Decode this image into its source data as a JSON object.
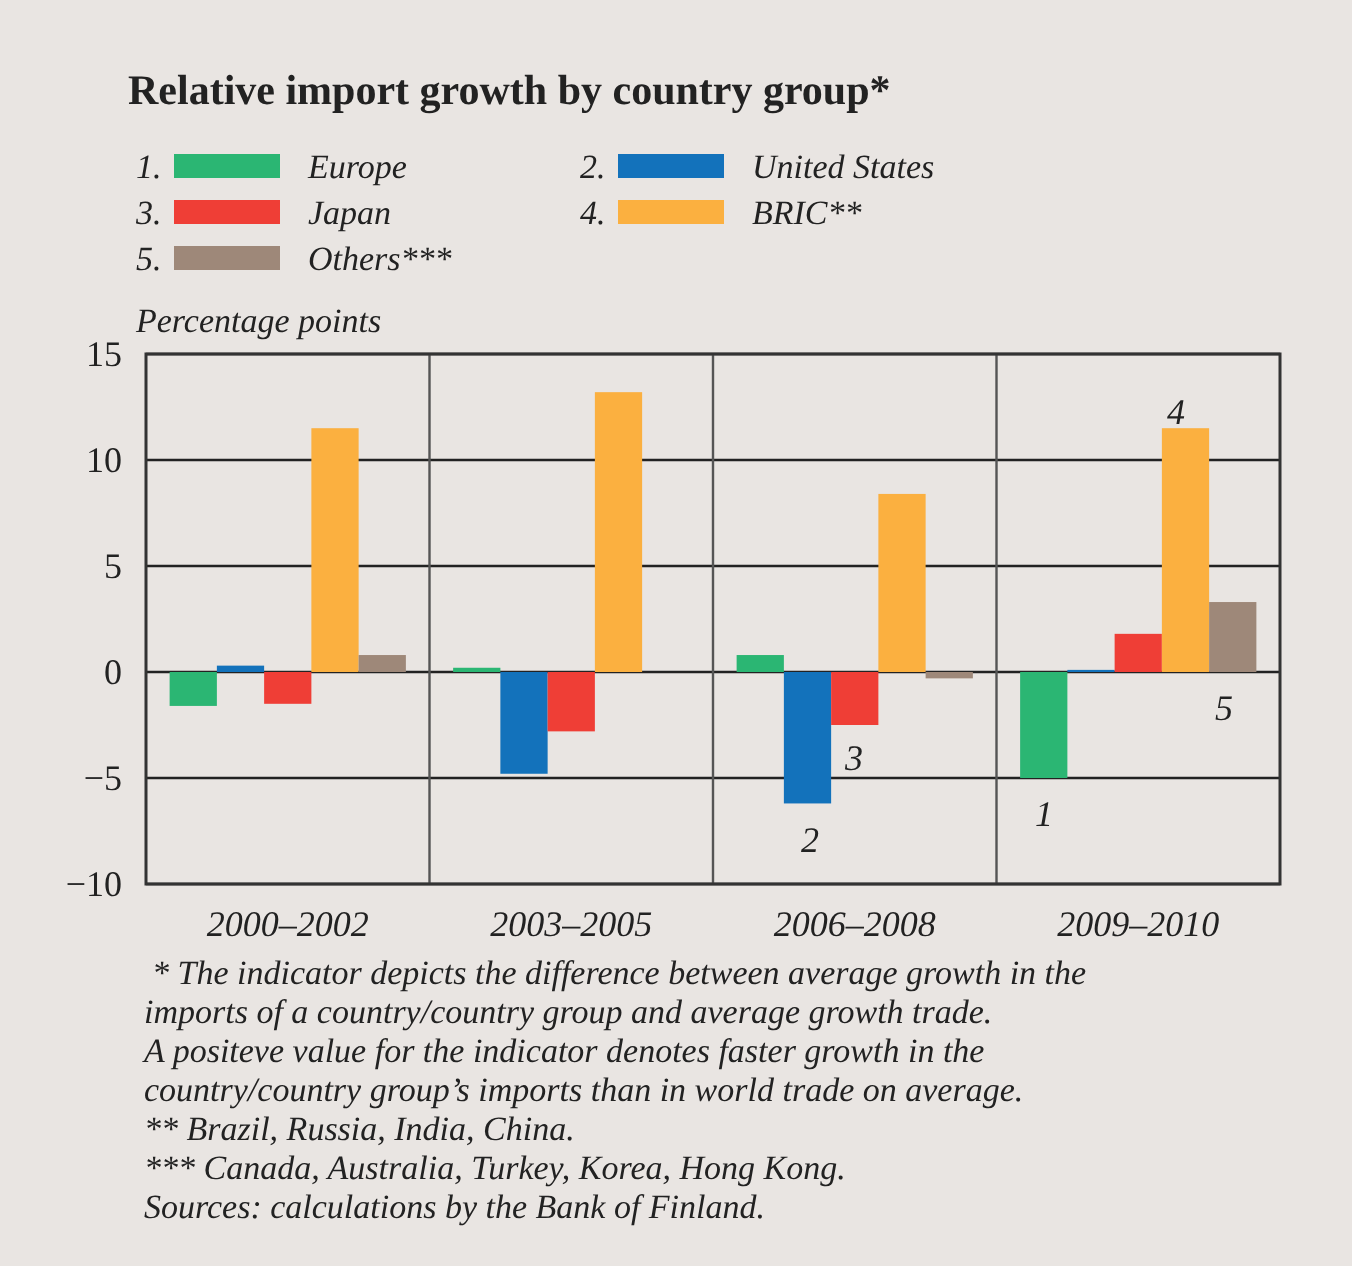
{
  "chart_data": {
    "type": "bar",
    "title": "Relative import growth by country group*",
    "ylabel": "Percentage points",
    "categories": [
      "2000–2002",
      "2003–2005",
      "2006–2008",
      "2009–2010"
    ],
    "series": [
      {
        "name": "Europe",
        "color": "#2bb673",
        "values": [
          -1.6,
          0.2,
          0.8,
          -5.0
        ]
      },
      {
        "name": "United States",
        "color": "#1372bb",
        "values": [
          0.3,
          -4.8,
          -6.2,
          0.1
        ]
      },
      {
        "name": "Japan",
        "color": "#ef3e36",
        "values": [
          -1.5,
          -2.8,
          -2.5,
          1.8
        ]
      },
      {
        "name": "BRIC**",
        "color": "#fbb040",
        "values": [
          11.5,
          13.2,
          8.4,
          11.5
        ]
      },
      {
        "name": "Others***",
        "color": "#9e8879",
        "values": [
          0.8,
          0,
          -0.3,
          3.3
        ]
      }
    ],
    "ylim": [
      -10,
      15
    ],
    "yticks": [
      {
        "value": -10,
        "label": "−10"
      },
      {
        "value": -5,
        "label": "−5"
      },
      0,
      5,
      10,
      15
    ],
    "grid": "y",
    "legend": "top left",
    "annotations": [
      "1",
      "2",
      "3",
      "4",
      "5",
      "1.",
      "2.",
      "3.",
      "4.",
      "5.",
      "* The indicator depicts the difference between average growth in the imports of a country/country group and average growth trade.",
      "A positeve value for the indicator denotes faster growth in the country/country group’s imports than in world trade on average.",
      "** Brazil, Russia, India, China.",
      "*** Canada, Australia, Turkey, Korea, Hong Kong.",
      "Sources: calculations by the Bank of Finland."
    ]
  }
}
